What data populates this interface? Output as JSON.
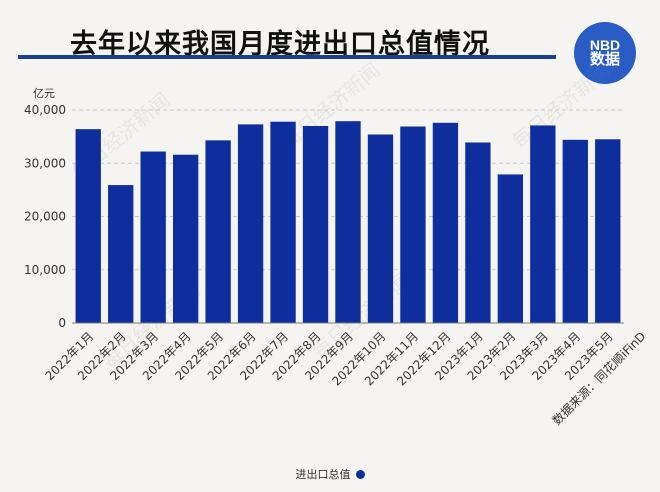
{
  "header": {
    "title": "去年以来我国月度进出口总值情况",
    "logo_line1": "NBD",
    "logo_line2": "数据"
  },
  "watermark": "每日经济新闻",
  "source_note": "数据来源：同花顺iFinD",
  "chart_data": {
    "type": "bar",
    "title": "去年以来我国月度进出口总值情况",
    "unit_label": "亿元",
    "categories": [
      "2022年1月",
      "2022年2月",
      "2022年3月",
      "2022年4月",
      "2022年5月",
      "2022年6月",
      "2022年7月",
      "2022年8月",
      "2022年9月",
      "2022年10月",
      "2022年11月",
      "2022年12月",
      "2023年1月",
      "2023年2月",
      "2023年3月",
      "2023年4月",
      "2023年5月"
    ],
    "series": [
      {
        "name": "进出口总值",
        "values": [
          36400,
          25900,
          32200,
          31600,
          34300,
          37300,
          37800,
          37000,
          37900,
          35400,
          36900,
          37600,
          33900,
          27900,
          37100,
          34400,
          34500
        ]
      }
    ],
    "ylim": [
      0,
      40000
    ],
    "yticks": [
      0,
      10000,
      20000,
      30000,
      40000
    ],
    "ytick_labels": [
      "0",
      "10,000",
      "20,000",
      "30,000",
      "40,000"
    ],
    "grid": true,
    "legend_position": "bottom",
    "bar_color": "#0d2e9c"
  }
}
